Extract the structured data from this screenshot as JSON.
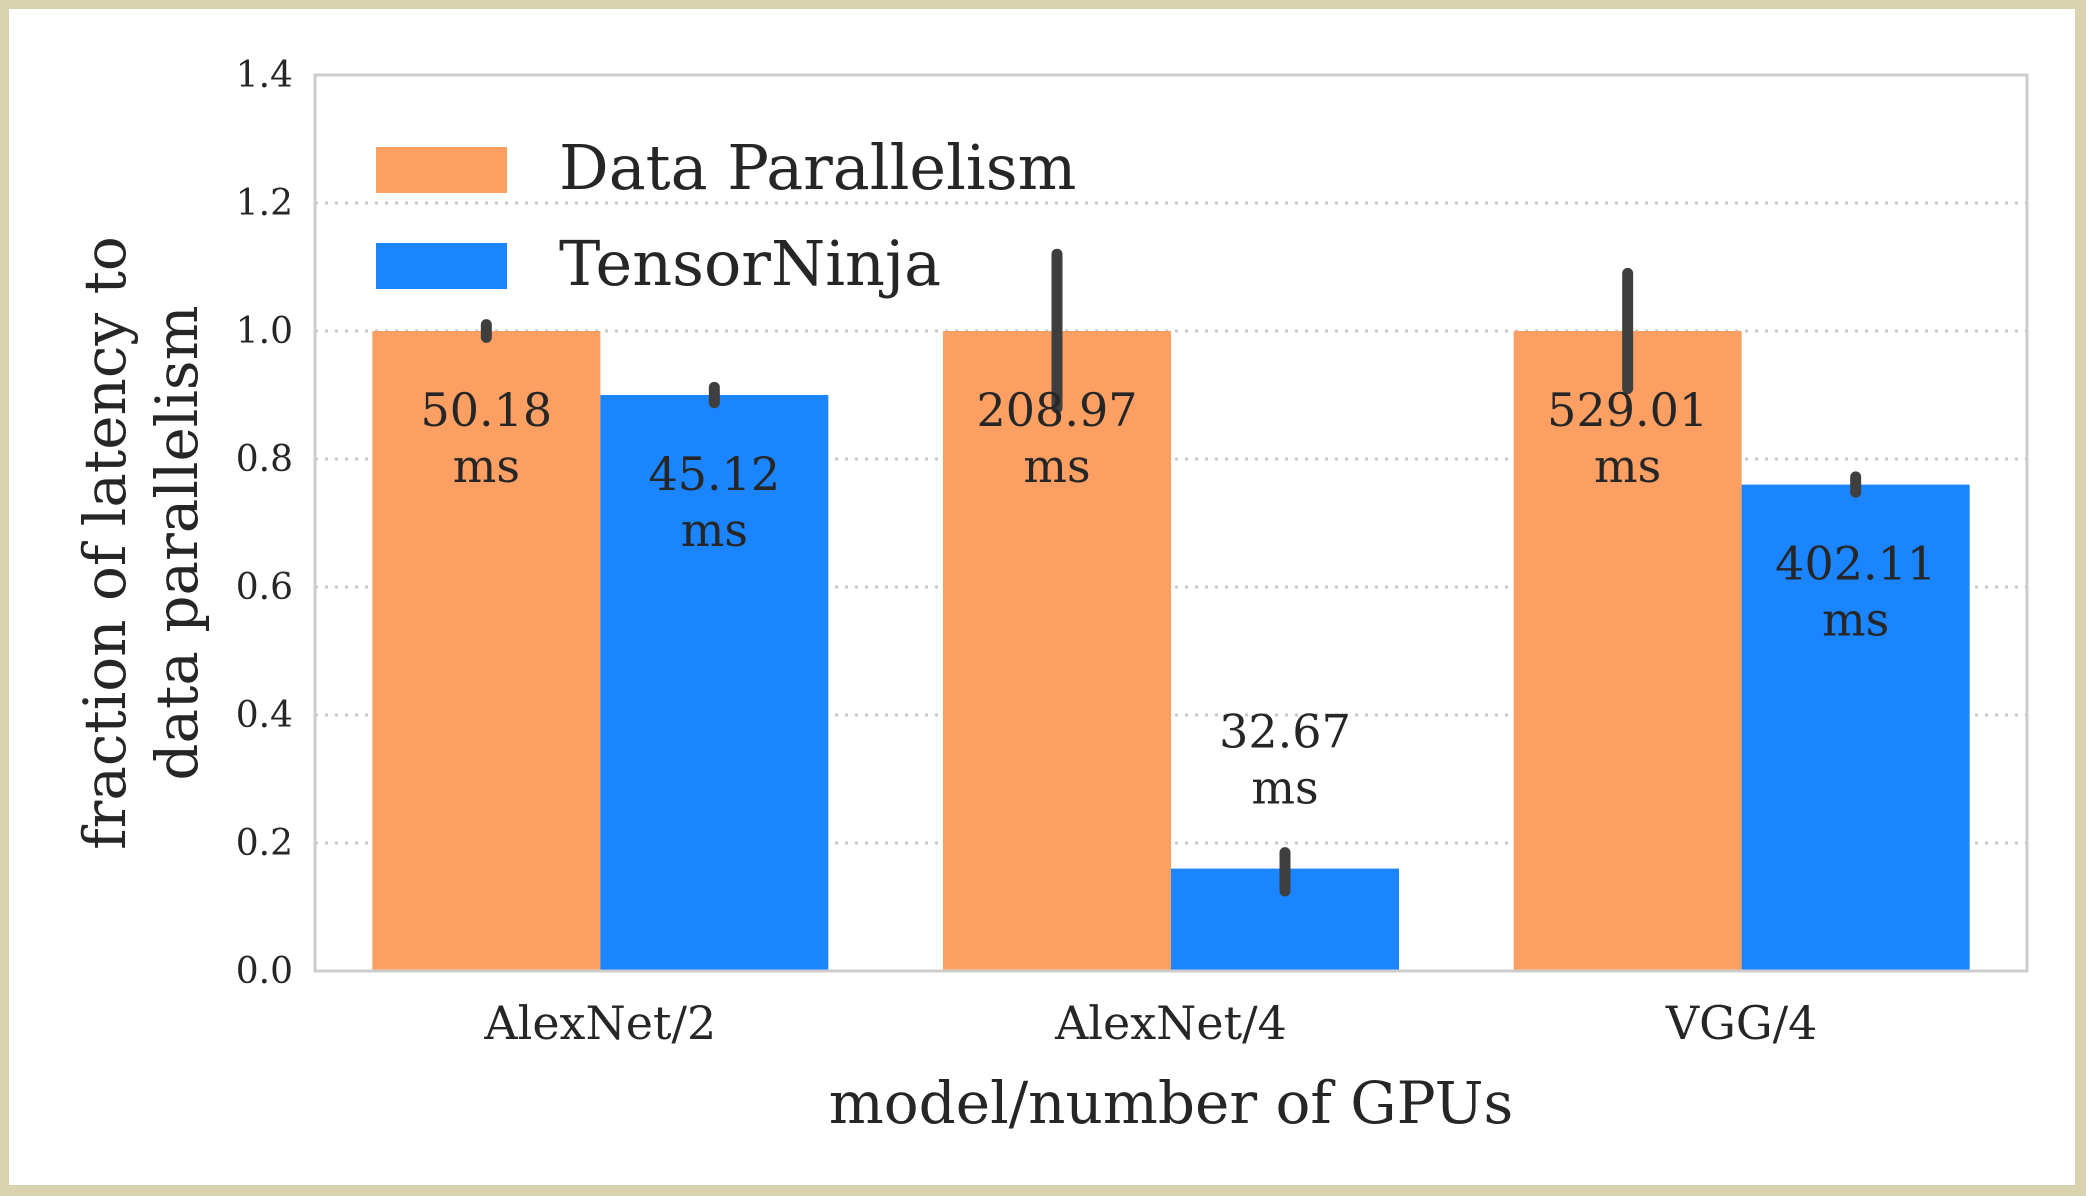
{
  "chart_data": {
    "type": "bar",
    "title": "",
    "xlabel": "model/number of GPUs",
    "ylabel": [
      "fraction of latency to",
      "data parallelism"
    ],
    "categories": [
      "AlexNet/2",
      "AlexNet/4",
      "VGG/4"
    ],
    "ylim": [
      0,
      1.4
    ],
    "yticks": [
      "0.0",
      "0.2",
      "0.4",
      "0.6",
      "0.8",
      "1.0",
      "1.2",
      "1.4"
    ],
    "grid": "horizontal dotted",
    "legend_position": "top-left",
    "series": [
      {
        "name": "Data Parallelism",
        "color": "#fc9f63",
        "values": [
          1.0,
          1.0,
          1.0
        ],
        "error_low": [
          0.99,
          0.88,
          0.91
        ],
        "error_high": [
          1.01,
          1.12,
          1.09
        ],
        "labels": [
          [
            "50.18",
            "ms"
          ],
          [
            "208.97",
            "ms"
          ],
          [
            "529.01",
            "ms"
          ]
        ]
      },
      {
        "name": "TensorNinja",
        "color": "#1a85fe",
        "values": [
          0.9,
          0.16,
          0.76
        ],
        "error_low": [
          0.888,
          0.125,
          0.748
        ],
        "error_high": [
          0.912,
          0.185,
          0.772
        ],
        "labels": [
          [
            "45.12",
            "ms"
          ],
          [
            "32.67",
            "ms"
          ],
          [
            "402.11",
            "ms"
          ]
        ]
      }
    ]
  }
}
